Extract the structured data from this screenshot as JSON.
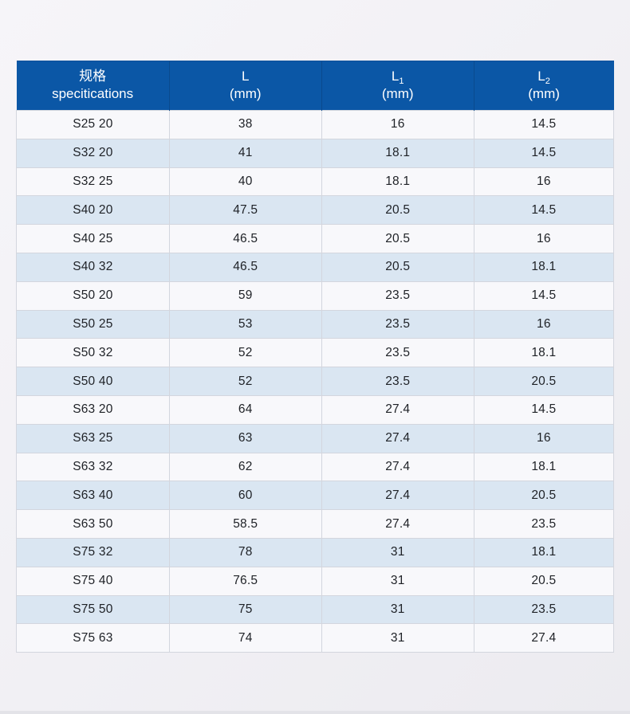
{
  "page": {
    "background_top_color": "#f6f5f9",
    "background_bottom_color": "#ecebf0"
  },
  "table": {
    "accent_color": "#0b57a6",
    "header_text_color": "#ffffff",
    "header_divider_color": "#0a4a8e",
    "row_even_color": "#dae6f2",
    "row_odd_color": "#f8f8fb",
    "border_color": "#d3d6de",
    "columns": [
      {
        "line1": "规格",
        "sub": "",
        "line2": "specitications"
      },
      {
        "line1": "L",
        "sub": "",
        "line2": "(mm)"
      },
      {
        "line1": "L",
        "sub": "1",
        "line2": "(mm)"
      },
      {
        "line1": "L",
        "sub": "2",
        "line2": "(mm)"
      }
    ],
    "rows": [
      [
        "S25 20",
        "38",
        "16",
        "14.5"
      ],
      [
        "S32 20",
        "41",
        "18.1",
        "14.5"
      ],
      [
        "S32 25",
        "40",
        "18.1",
        "16"
      ],
      [
        "S40 20",
        "47.5",
        "20.5",
        "14.5"
      ],
      [
        "S40 25",
        "46.5",
        "20.5",
        "16"
      ],
      [
        "S40 32",
        "46.5",
        "20.5",
        "18.1"
      ],
      [
        "S50 20",
        "59",
        "23.5",
        "14.5"
      ],
      [
        "S50 25",
        "53",
        "23.5",
        "16"
      ],
      [
        "S50 32",
        "52",
        "23.5",
        "18.1"
      ],
      [
        "S50 40",
        "52",
        "23.5",
        "20.5"
      ],
      [
        "S63 20",
        "64",
        "27.4",
        "14.5"
      ],
      [
        "S63 25",
        "63",
        "27.4",
        "16"
      ],
      [
        "S63 32",
        "62",
        "27.4",
        "18.1"
      ],
      [
        "S63 40",
        "60",
        "27.4",
        "20.5"
      ],
      [
        "S63 50",
        "58.5",
        "27.4",
        "23.5"
      ],
      [
        "S75 32",
        "78",
        "31",
        "18.1"
      ],
      [
        "S75 40",
        "76.5",
        "31",
        "20.5"
      ],
      [
        "S75 50",
        "75",
        "31",
        "23.5"
      ],
      [
        "S75 63",
        "74",
        "31",
        "27.4"
      ]
    ]
  }
}
